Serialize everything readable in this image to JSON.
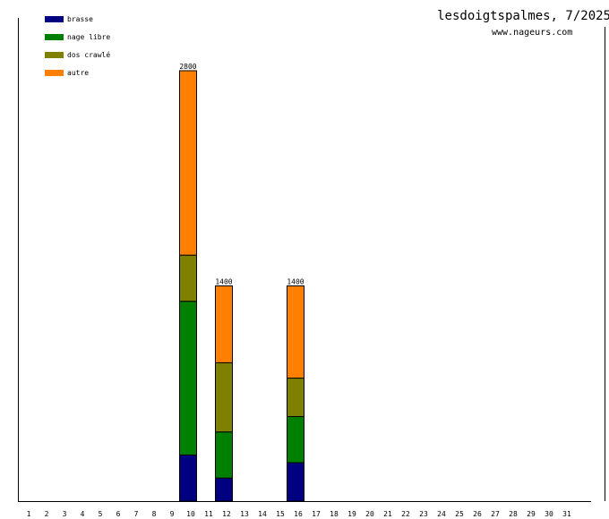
{
  "chart_data": {
    "type": "bar",
    "stacked": true,
    "title": "lesdoigtspalmes, 7/2025",
    "subtitle": "www.nageurs.com",
    "xlabel": "",
    "ylabel": "",
    "categories": [
      "1",
      "2",
      "3",
      "4",
      "5",
      "6",
      "7",
      "8",
      "9",
      "10",
      "11",
      "12",
      "13",
      "14",
      "15",
      "16",
      "17",
      "18",
      "19",
      "20",
      "21",
      "22",
      "23",
      "24",
      "25",
      "26",
      "27",
      "28",
      "29",
      "30",
      "31"
    ],
    "ylim": [
      0,
      2800
    ],
    "legend_position": "top-left",
    "series": [
      {
        "name": "brasse",
        "color": "#000080",
        "values": [
          0,
          0,
          0,
          0,
          0,
          0,
          0,
          0,
          0,
          300,
          0,
          150,
          0,
          0,
          0,
          250,
          0,
          0,
          0,
          0,
          0,
          0,
          0,
          0,
          0,
          0,
          0,
          0,
          0,
          0,
          0
        ]
      },
      {
        "name": "nage libre",
        "color": "#008000",
        "values": [
          0,
          0,
          0,
          0,
          0,
          0,
          0,
          0,
          0,
          1000,
          0,
          300,
          0,
          0,
          0,
          300,
          0,
          0,
          0,
          0,
          0,
          0,
          0,
          0,
          0,
          0,
          0,
          0,
          0,
          0,
          0
        ]
      },
      {
        "name": "dos crawlé",
        "color": "#808000",
        "values": [
          0,
          0,
          0,
          0,
          0,
          0,
          0,
          0,
          0,
          300,
          0,
          450,
          0,
          0,
          0,
          250,
          0,
          0,
          0,
          0,
          0,
          0,
          0,
          0,
          0,
          0,
          0,
          0,
          0,
          0,
          0
        ]
      },
      {
        "name": "autre",
        "color": "#ff8000",
        "values": [
          0,
          0,
          0,
          0,
          0,
          0,
          0,
          0,
          0,
          1200,
          0,
          500,
          0,
          0,
          0,
          600,
          0,
          0,
          0,
          0,
          0,
          0,
          0,
          0,
          0,
          0,
          0,
          0,
          0,
          0,
          0
        ]
      }
    ],
    "totals": {
      "10": "2800",
      "12": "1400",
      "16": "1400"
    }
  }
}
